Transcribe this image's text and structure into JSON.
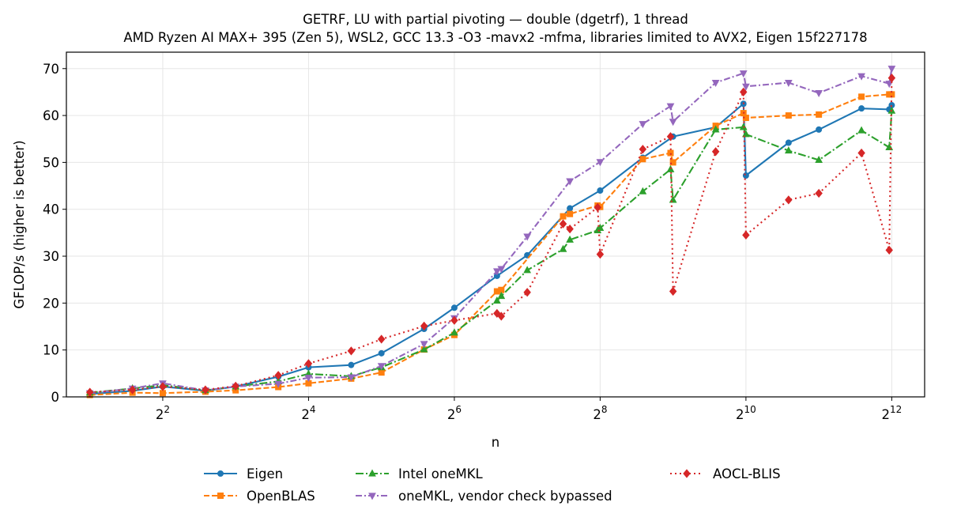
{
  "chart_data": {
    "type": "line",
    "title": "GETRF, LU with partial pivoting — double (dgetrf), 1 thread",
    "subtitle": "AMD Ryzen AI MAX+ 395 (Zen 5), WSL2, GCC 13.3 -O3 -mavx2 -mfma, libraries limited to AVX2, Eigen 15f227178",
    "xlabel": "n",
    "ylabel": "GFLOP/s (higher is better)",
    "xscale": "log2",
    "xlim": [
      1.6,
      5600
    ],
    "ylim": [
      0,
      73.5
    ],
    "xticks": [
      {
        "label": "2",
        "exp": "2",
        "value": 4
      },
      {
        "label": "2",
        "exp": "4",
        "value": 16
      },
      {
        "label": "2",
        "exp": "6",
        "value": 64
      },
      {
        "label": "2",
        "exp": "8",
        "value": 256
      },
      {
        "label": "2",
        "exp": "10",
        "value": 1024
      },
      {
        "label": "2",
        "exp": "12",
        "value": 4096
      }
    ],
    "yticks": [
      0,
      10,
      20,
      30,
      40,
      50,
      60,
      70
    ],
    "grid": true,
    "legend_position": "bottom",
    "series": [
      {
        "name": "Eigen",
        "color": "#1f77b4",
        "marker": "circle",
        "dash": "",
        "x": [
          2,
          3,
          4,
          6,
          8,
          12,
          16,
          24,
          32,
          48,
          64,
          96,
          128,
          192,
          256,
          384,
          512,
          768,
          1000,
          1024,
          1536,
          2048,
          3072,
          4000,
          4096
        ],
        "y": [
          0.6,
          1.3,
          2.2,
          1.3,
          2.2,
          4.3,
          6.3,
          6.8,
          9.3,
          14.5,
          19.0,
          25.8,
          30.2,
          40.2,
          44.0,
          51.0,
          55.5,
          57.5,
          62.5,
          47.2,
          54.2,
          57.0,
          61.5,
          61.3,
          62.2
        ]
      },
      {
        "name": "OpenBLAS",
        "color": "#ff7f0e",
        "marker": "square",
        "dash": "7,3",
        "x": [
          2,
          3,
          4,
          6,
          8,
          12,
          16,
          24,
          32,
          48,
          64,
          96,
          100,
          180,
          192,
          250,
          256,
          384,
          500,
          512,
          768,
          1000,
          1024,
          1536,
          2048,
          3072,
          4000,
          4096
        ],
        "y": [
          0.4,
          0.9,
          0.8,
          1.1,
          1.4,
          2.1,
          2.9,
          3.9,
          5.2,
          10.1,
          13.2,
          22.5,
          22.8,
          38.5,
          39.0,
          40.8,
          40.5,
          50.7,
          52.0,
          50.0,
          57.8,
          60.5,
          59.5,
          60.0,
          60.2,
          64.0,
          64.5,
          64.5
        ]
      },
      {
        "name": "Intel oneMKL",
        "color": "#2ca02c",
        "marker": "triangle",
        "dash": "10,3,2,3",
        "x": [
          2,
          3,
          4,
          6,
          8,
          12,
          16,
          24,
          32,
          48,
          64,
          96,
          100,
          128,
          180,
          192,
          250,
          256,
          384,
          500,
          512,
          768,
          1000,
          1024,
          1536,
          2048,
          3072,
          4000,
          4096
        ],
        "y": [
          0.9,
          1.8,
          2.5,
          1.4,
          2.2,
          3.3,
          4.9,
          4.4,
          6.3,
          10.1,
          13.7,
          20.5,
          21.5,
          27.0,
          31.5,
          33.5,
          35.5,
          36.0,
          43.8,
          48.5,
          42.0,
          57.0,
          57.5,
          56.0,
          52.5,
          50.5,
          56.8,
          53.2,
          61.0
        ]
      },
      {
        "name": "oneMKL, vendor check bypassed",
        "color": "#9467bd",
        "marker": "triangle-down",
        "dash": "8,3,2,3",
        "x": [
          2,
          3,
          4,
          6,
          8,
          12,
          16,
          24,
          32,
          48,
          64,
          96,
          100,
          128,
          192,
          256,
          384,
          500,
          512,
          768,
          1000,
          1024,
          1536,
          2048,
          3072,
          4000,
          4096
        ],
        "y": [
          0.8,
          1.8,
          2.9,
          1.4,
          2.2,
          2.8,
          4.1,
          4.2,
          6.6,
          11.3,
          16.8,
          26.8,
          27.3,
          34.2,
          46.0,
          50.1,
          58.2,
          62.0,
          58.7,
          67.0,
          69.0,
          66.2,
          67.0,
          64.8,
          68.4,
          66.8,
          70.0
        ]
      },
      {
        "name": "AOCL-BLIS",
        "color": "#d62728",
        "marker": "diamond",
        "dash": "2,4",
        "x": [
          2,
          3,
          4,
          6,
          8,
          12,
          16,
          24,
          32,
          48,
          64,
          96,
          100,
          128,
          180,
          192,
          250,
          256,
          384,
          500,
          512,
          768,
          1000,
          1024,
          1536,
          2048,
          3072,
          4000,
          4096
        ],
        "y": [
          1.0,
          1.5,
          2.2,
          1.5,
          2.3,
          4.6,
          7.1,
          9.8,
          12.3,
          15.1,
          16.3,
          17.8,
          17.2,
          22.3,
          36.9,
          35.8,
          40.4,
          30.4,
          52.8,
          55.5,
          22.5,
          52.3,
          65.0,
          34.5,
          42.0,
          43.4,
          52.0,
          31.3,
          68.0
        ]
      }
    ]
  }
}
